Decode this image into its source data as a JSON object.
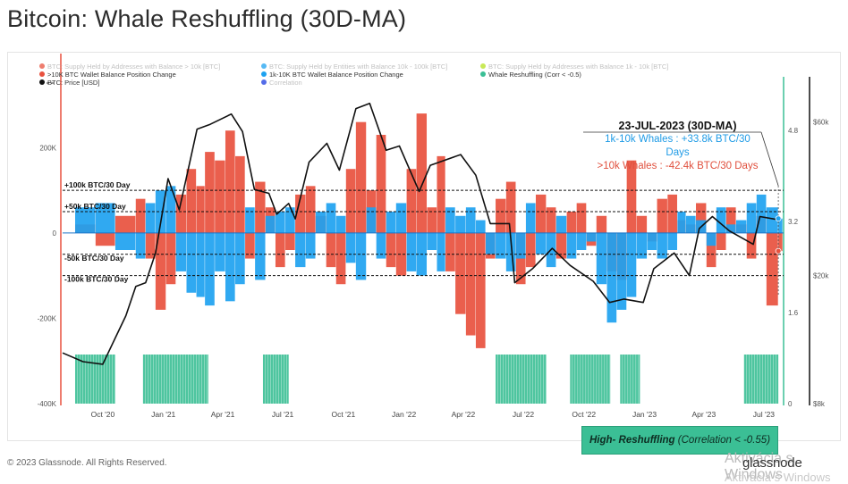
{
  "title": "Bitcoin: Whale Reshuffling (30D-MA)",
  "footer": "© 2023 Glassnode. All Rights Reserved.",
  "brand": "glassnode",
  "watermark": "Aktivácia s Windows",
  "watermark2": "Aktivácia s Windows",
  "legend": [
    {
      "label": "BTC: Supply Held by Addresses with Balance > 10k [BTC]",
      "color": "#e8513e",
      "faded": true
    },
    {
      "label": "BTC: Supply Held by Entities with Balance 10k - 100k [BTC]",
      "color": "#1ea2f0",
      "faded": true
    },
    {
      "label": "BTC: Supply Held by Addresses with Balance 1k - 10k [BTC]",
      "color": "#b6e21f",
      "faded": true
    },
    {
      "label": ">10K BTC Wallet Balance Position Change",
      "color": "#e8513e",
      "faded": false
    },
    {
      "label": "1k-10K BTC Wallet Balance Position Change",
      "color": "#1ea2f0",
      "faded": false
    },
    {
      "label": "Whale Reshuffling (Corr < -0.5)",
      "color": "#3bbf95",
      "faded": false
    },
    {
      "label": "BTC: Price [USD]",
      "color": "#111111",
      "faded": false
    },
    {
      "label": "Correlation",
      "color": "#1b3be0",
      "faded": true
    }
  ],
  "annotation": {
    "heading": "23-JUL-2023  (30D-MA)",
    "blue_line1": "1k-10k Whales : +33.8k BTC/30",
    "blue_line2": "Days",
    "red_line": ">10k Whales : -42.4k BTC/30 Days"
  },
  "callout": {
    "bold": "High- Reshuffling",
    "rest": "(Correlation < -0.55)"
  },
  "chart_data": {
    "type": "bar",
    "x_ticks": [
      "Oct '20",
      "Jan '21",
      "Apr '21",
      "Jul '21",
      "Oct '21",
      "Jan '22",
      "Apr '22",
      "Jul '22",
      "Oct '22",
      "Jan '23",
      "Apr '23",
      "Jul '23"
    ],
    "y_left_ticks": [
      "200K",
      "0",
      "-200K",
      "-400K"
    ],
    "y_left_values": [
      200000,
      0,
      -200000,
      -400000
    ],
    "ylim_left": [
      -400000,
      320000
    ],
    "y_mid_ticks": [
      "4.8",
      "3.2",
      "1.6",
      "0"
    ],
    "y_mid_values": [
      4.8,
      3.2,
      1.6,
      0
    ],
    "ylim_mid": [
      0,
      5.4
    ],
    "y_price_ticks": [
      "$60k",
      "$20k",
      "$8k"
    ],
    "y_price_scale": "log",
    "threshold_lines": [
      {
        "label": "+100k BTC/30 Day",
        "value": 100000
      },
      {
        "label": "+50k BTC/30 Day",
        "value": 50000
      },
      {
        "label": "-50k BTC/30 Day",
        "value": -50000
      },
      {
        "label": "-100k BTC/30 Day",
        "value": -100000
      }
    ],
    "series": [
      {
        "name": ">10K BTC Wallet Balance Position Change",
        "color": "#e8513e",
        "x": [
          "2020-08-20",
          "2020-09-20",
          "2020-10-20",
          "2020-11-20",
          "2020-12-05",
          "2020-12-20",
          "2021-01-05",
          "2021-01-20",
          "2021-02-05",
          "2021-02-20",
          "2021-03-05",
          "2021-03-20",
          "2021-04-05",
          "2021-04-20",
          "2021-05-05",
          "2021-05-20",
          "2021-06-05",
          "2021-06-20",
          "2021-07-05",
          "2021-07-20",
          "2021-08-05",
          "2021-08-20",
          "2021-09-05",
          "2021-09-20",
          "2021-10-05",
          "2021-10-20",
          "2021-11-05",
          "2021-11-20",
          "2021-12-05",
          "2021-12-20",
          "2022-01-05",
          "2022-01-20",
          "2022-02-05",
          "2022-02-20",
          "2022-03-05",
          "2022-03-20",
          "2022-04-05",
          "2022-04-20",
          "2022-05-05",
          "2022-05-20",
          "2022-06-05",
          "2022-06-20",
          "2022-07-05",
          "2022-07-20",
          "2022-08-05",
          "2022-08-20",
          "2022-09-05",
          "2022-09-20",
          "2022-10-05",
          "2022-10-20",
          "2022-11-05",
          "2022-11-20",
          "2022-12-05",
          "2022-12-20",
          "2023-01-05",
          "2023-01-20",
          "2023-02-05",
          "2023-02-20",
          "2023-03-05",
          "2023-03-20",
          "2023-04-05",
          "2023-04-20",
          "2023-05-05",
          "2023-05-20",
          "2023-06-05",
          "2023-06-20",
          "2023-07-05",
          "2023-07-23"
        ],
        "values": [
          20000,
          -30000,
          40000,
          80000,
          -60000,
          -180000,
          -120000,
          90000,
          150000,
          110000,
          190000,
          170000,
          240000,
          180000,
          -60000,
          120000,
          60000,
          -80000,
          -40000,
          90000,
          110000,
          40000,
          -80000,
          -120000,
          150000,
          260000,
          100000,
          230000,
          -80000,
          -100000,
          150000,
          280000,
          60000,
          180000,
          -90000,
          -190000,
          -240000,
          -270000,
          -60000,
          80000,
          120000,
          -120000,
          -80000,
          90000,
          60000,
          -60000,
          50000,
          70000,
          -30000,
          40000,
          -90000,
          -110000,
          170000,
          40000,
          -20000,
          80000,
          90000,
          30000,
          20000,
          70000,
          -80000,
          -40000,
          60000,
          20000,
          -60000,
          40000,
          -170000,
          -42400
        ]
      },
      {
        "name": "1k-10K BTC Wallet Balance Position Change",
        "color": "#1ea2f0",
        "x": [
          "2020-08-20",
          "2020-09-20",
          "2020-10-20",
          "2020-11-20",
          "2020-12-05",
          "2020-12-20",
          "2021-01-05",
          "2021-01-20",
          "2021-02-05",
          "2021-02-20",
          "2021-03-05",
          "2021-03-20",
          "2021-04-05",
          "2021-04-20",
          "2021-05-05",
          "2021-05-20",
          "2021-06-05",
          "2021-06-20",
          "2021-07-05",
          "2021-07-20",
          "2021-08-05",
          "2021-08-20",
          "2021-09-05",
          "2021-09-20",
          "2021-10-05",
          "2021-10-20",
          "2021-11-05",
          "2021-11-20",
          "2021-12-05",
          "2021-12-20",
          "2022-01-05",
          "2022-01-20",
          "2022-02-05",
          "2022-02-20",
          "2022-03-05",
          "2022-03-20",
          "2022-04-05",
          "2022-04-20",
          "2022-05-05",
          "2022-05-20",
          "2022-06-05",
          "2022-06-20",
          "2022-07-05",
          "2022-07-20",
          "2022-08-05",
          "2022-08-20",
          "2022-09-05",
          "2022-09-20",
          "2022-10-05",
          "2022-10-20",
          "2022-11-05",
          "2022-11-20",
          "2022-12-05",
          "2022-12-20",
          "2023-01-05",
          "2023-01-20",
          "2023-02-05",
          "2023-02-20",
          "2023-03-05",
          "2023-03-20",
          "2023-04-05",
          "2023-04-20",
          "2023-05-05",
          "2023-05-20",
          "2023-06-05",
          "2023-06-20",
          "2023-07-05",
          "2023-07-23"
        ],
        "values": [
          60000,
          70000,
          -40000,
          -60000,
          70000,
          100000,
          110000,
          -90000,
          -140000,
          -150000,
          -170000,
          -90000,
          -160000,
          -120000,
          60000,
          -110000,
          40000,
          50000,
          60000,
          -80000,
          -60000,
          50000,
          70000,
          40000,
          -70000,
          -110000,
          60000,
          -60000,
          50000,
          70000,
          -90000,
          -100000,
          -40000,
          -90000,
          60000,
          40000,
          60000,
          30000,
          -50000,
          -60000,
          -90000,
          -60000,
          70000,
          -50000,
          -80000,
          40000,
          -60000,
          -40000,
          -20000,
          -120000,
          -210000,
          -180000,
          -150000,
          -60000,
          -40000,
          -60000,
          -40000,
          50000,
          40000,
          30000,
          -30000,
          60000,
          20000,
          30000,
          70000,
          90000,
          60000,
          33800
        ]
      },
      {
        "name": "BTC: Price [USD]",
        "color": "#111111",
        "x": [
          "2020-08-01",
          "2020-09-01",
          "2020-10-01",
          "2020-10-20",
          "2020-11-05",
          "2020-11-20",
          "2020-12-05",
          "2020-12-20",
          "2021-01-08",
          "2021-01-25",
          "2021-02-10",
          "2021-02-21",
          "2021-03-13",
          "2021-04-14",
          "2021-05-01",
          "2021-05-19",
          "2021-06-10",
          "2021-06-22",
          "2021-07-10",
          "2021-07-20",
          "2021-08-10",
          "2021-09-06",
          "2021-09-25",
          "2021-10-20",
          "2021-11-10",
          "2021-12-05",
          "2021-12-25",
          "2022-01-24",
          "2022-02-10",
          "2022-03-28",
          "2022-04-20",
          "2022-05-12",
          "2022-06-10",
          "2022-06-18",
          "2022-07-15",
          "2022-08-14",
          "2022-09-10",
          "2022-10-15",
          "2022-11-09",
          "2022-12-01",
          "2022-12-30",
          "2023-01-15",
          "2023-02-15",
          "2023-03-10",
          "2023-03-25",
          "2023-04-14",
          "2023-05-10",
          "2023-06-15",
          "2023-06-25",
          "2023-07-23"
        ],
        "values": [
          11500,
          10800,
          10600,
          12800,
          15000,
          18500,
          19000,
          23500,
          40000,
          32000,
          45000,
          57000,
          59000,
          63500,
          56000,
          37000,
          36000,
          31000,
          33500,
          30000,
          45000,
          51500,
          42500,
          66000,
          68500,
          49000,
          50500,
          36500,
          44000,
          47500,
          41000,
          29000,
          29000,
          19000,
          21000,
          24300,
          21500,
          19200,
          16500,
          16900,
          16500,
          21000,
          23500,
          20000,
          28000,
          30500,
          27500,
          25000,
          30500,
          29800
        ]
      },
      {
        "name": "Whale Reshuffling (Corr < -0.5)",
        "color": "#3bbf95",
        "periods": [
          [
            "2020-08-20",
            "2020-10-20"
          ],
          [
            "2020-12-01",
            "2021-03-10"
          ],
          [
            "2021-06-01",
            "2021-07-10"
          ],
          [
            "2022-05-20",
            "2022-08-05"
          ],
          [
            "2022-09-10",
            "2022-11-10"
          ],
          [
            "2022-11-25",
            "2022-12-25"
          ],
          [
            "2023-06-01",
            "2023-07-23"
          ]
        ]
      }
    ],
    "annotation_date": "2023-07-23"
  }
}
